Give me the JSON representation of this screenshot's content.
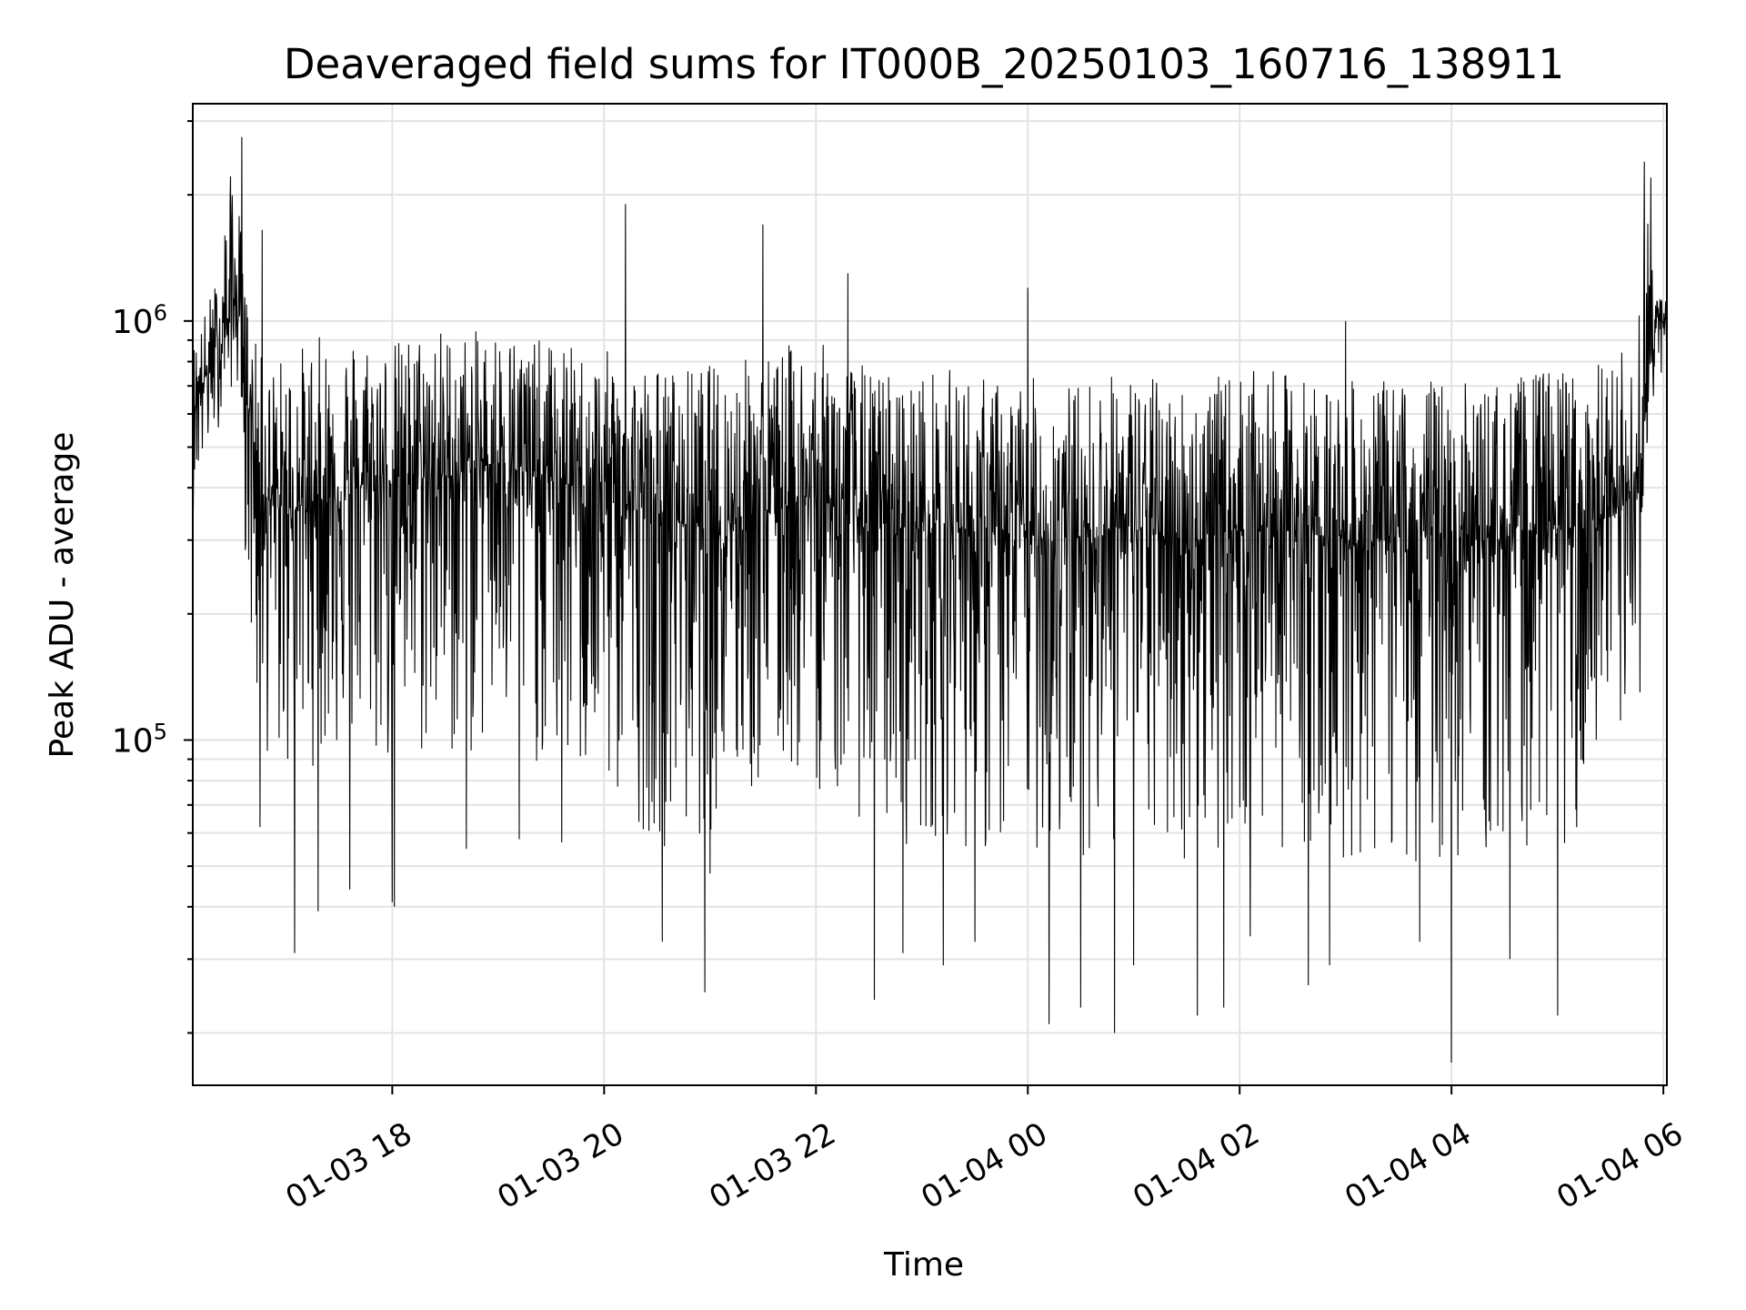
{
  "chart_data": {
    "type": "line",
    "title": "Deaveraged field sums for IT000B_20250103_160716_138911",
    "xlabel": "Time",
    "ylabel": "Peak ADU - average",
    "yscale": "log",
    "ylim": [
      15000,
      3300000
    ],
    "xlim": [
      "01-03 16:07",
      "01-04 06:02"
    ],
    "x_tick_labels": [
      "01-03 18",
      "01-03 20",
      "01-03 22",
      "01-04 00",
      "01-04 02",
      "01-04 04",
      "01-04 06"
    ],
    "x_tick_values_hours": [
      18,
      20,
      22,
      24,
      26,
      28,
      30
    ],
    "y_tick_labels": [
      {
        "base": "10",
        "exp": "5",
        "value": 100000
      },
      {
        "base": "10",
        "exp": "6",
        "value": 1000000
      }
    ],
    "grid": true,
    "legend": "none",
    "series": [
      {
        "color": "#000000",
        "x_hours": [
          16.12,
          16.15,
          16.2,
          16.3,
          16.4,
          16.5,
          16.58,
          16.62,
          16.7,
          16.75,
          16.8,
          16.9,
          17.0,
          17.2,
          17.4,
          17.6,
          17.8,
          18.0,
          18.2,
          18.4,
          18.6,
          18.8,
          19.0,
          19.2,
          19.4,
          19.6,
          19.8,
          20.0,
          20.2,
          20.4,
          20.6,
          20.8,
          21.0,
          21.2,
          21.4,
          21.6,
          21.8,
          22.0,
          22.2,
          22.4,
          22.6,
          22.8,
          23.0,
          23.2,
          23.4,
          23.6,
          23.8,
          24.0,
          24.2,
          24.4,
          24.6,
          24.8,
          25.0,
          25.2,
          25.4,
          25.6,
          25.8,
          26.0,
          26.2,
          26.4,
          26.6,
          26.8,
          27.0,
          27.2,
          27.4,
          27.6,
          27.8,
          28.0,
          28.2,
          28.4,
          28.6,
          28.8,
          29.0,
          29.2,
          29.4,
          29.6,
          29.7,
          29.8,
          29.85,
          29.9,
          29.95,
          30.0,
          30.05
        ],
        "y_median": [
          600000,
          650000,
          700000,
          800000,
          900000,
          1100000,
          1000000,
          700000,
          500000,
          420000,
          380000,
          360000,
          350000,
          370000,
          380000,
          400000,
          410000,
          420000,
          430000,
          420000,
          430000,
          450000,
          460000,
          440000,
          420000,
          410000,
          400000,
          380000,
          360000,
          350000,
          340000,
          330000,
          330000,
          340000,
          350000,
          360000,
          370000,
          380000,
          360000,
          340000,
          330000,
          320000,
          320000,
          330000,
          320000,
          310000,
          300000,
          310000,
          300000,
          300000,
          310000,
          320000,
          320000,
          310000,
          300000,
          300000,
          310000,
          320000,
          320000,
          320000,
          310000,
          310000,
          300000,
          300000,
          300000,
          310000,
          310000,
          300000,
          300000,
          300000,
          310000,
          320000,
          320000,
          320000,
          330000,
          350000,
          380000,
          480000,
          700000,
          900000,
          1000000,
          1000000,
          950000
        ],
        "y_low": [
          350000,
          400000,
          420000,
          500000,
          600000,
          700000,
          650000,
          200000,
          120000,
          100000,
          90000,
          85000,
          80000,
          85000,
          90000,
          90000,
          85000,
          80000,
          80000,
          90000,
          85000,
          90000,
          95000,
          90000,
          85000,
          80000,
          75000,
          70000,
          65000,
          60000,
          55000,
          55000,
          60000,
          65000,
          70000,
          75000,
          80000,
          75000,
          70000,
          65000,
          60000,
          55000,
          55000,
          60000,
          55000,
          50000,
          50000,
          55000,
          50000,
          50000,
          55000,
          55000,
          55000,
          50000,
          50000,
          50000,
          55000,
          55000,
          55000,
          55000,
          50000,
          50000,
          50000,
          50000,
          50000,
          50000,
          50000,
          50000,
          50000,
          50000,
          55000,
          55000,
          55000,
          55000,
          60000,
          70000,
          90000,
          200000,
          500000,
          650000,
          700000,
          700000,
          650000
        ],
        "y_high": [
          900000,
          950000,
          1000000,
          1200000,
          1400000,
          2700000,
          1600000,
          1200000,
          900000,
          850000,
          800000,
          820000,
          850000,
          900000,
          950000,
          950000,
          950000,
          900000,
          950000,
          1000000,
          950000,
          950000,
          1000000,
          950000,
          900000,
          900000,
          850000,
          850000,
          850000,
          800000,
          780000,
          780000,
          800000,
          800000,
          850000,
          850000,
          900000,
          900000,
          850000,
          800000,
          780000,
          760000,
          760000,
          780000,
          760000,
          740000,
          720000,
          740000,
          720000,
          720000,
          740000,
          760000,
          760000,
          740000,
          720000,
          720000,
          740000,
          760000,
          760000,
          760000,
          740000,
          740000,
          720000,
          720000,
          720000,
          740000,
          740000,
          720000,
          720000,
          720000,
          740000,
          760000,
          780000,
          780000,
          800000,
          850000,
          900000,
          1400000,
          1900000,
          1500000,
          1400000,
          1300000,
          1200000
        ],
        "spikes": [
          {
            "x": 16.58,
            "y": 2750000
          },
          {
            "x": 16.42,
            "y": 1600000
          },
          {
            "x": 16.77,
            "y": 1650000
          },
          {
            "x": 16.75,
            "y": 62000
          },
          {
            "x": 17.08,
            "y": 31000
          },
          {
            "x": 17.3,
            "y": 39000
          },
          {
            "x": 17.6,
            "y": 44000
          },
          {
            "x": 18.0,
            "y": 41000
          },
          {
            "x": 18.02,
            "y": 40000
          },
          {
            "x": 18.7,
            "y": 55000
          },
          {
            "x": 19.2,
            "y": 58000
          },
          {
            "x": 19.6,
            "y": 57000
          },
          {
            "x": 20.2,
            "y": 1900000
          },
          {
            "x": 20.55,
            "y": 33000
          },
          {
            "x": 20.95,
            "y": 25000
          },
          {
            "x": 21.5,
            "y": 1700000
          },
          {
            "x": 21.0,
            "y": 48000
          },
          {
            "x": 22.3,
            "y": 1300000
          },
          {
            "x": 22.55,
            "y": 24000
          },
          {
            "x": 22.82,
            "y": 31000
          },
          {
            "x": 23.2,
            "y": 29000
          },
          {
            "x": 23.5,
            "y": 33000
          },
          {
            "x": 24.0,
            "y": 1200000
          },
          {
            "x": 24.2,
            "y": 21000
          },
          {
            "x": 24.5,
            "y": 23000
          },
          {
            "x": 24.82,
            "y": 20000
          },
          {
            "x": 25.0,
            "y": 29000
          },
          {
            "x": 25.6,
            "y": 22000
          },
          {
            "x": 25.85,
            "y": 23000
          },
          {
            "x": 26.1,
            "y": 34000
          },
          {
            "x": 26.65,
            "y": 26000
          },
          {
            "x": 26.85,
            "y": 29000
          },
          {
            "x": 27.0,
            "y": 1000000
          },
          {
            "x": 27.7,
            "y": 33000
          },
          {
            "x": 28.0,
            "y": 17000
          },
          {
            "x": 28.55,
            "y": 30000
          },
          {
            "x": 29.0,
            "y": 22000
          },
          {
            "x": 29.05,
            "y": 750000
          },
          {
            "x": 29.78,
            "y": 130000
          },
          {
            "x": 29.82,
            "y": 2400000
          },
          {
            "x": 29.88,
            "y": 2200000
          }
        ]
      }
    ]
  }
}
